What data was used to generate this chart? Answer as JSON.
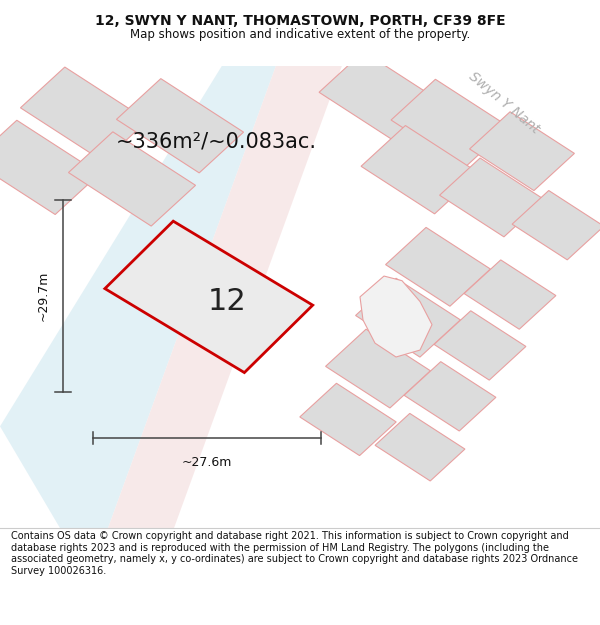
{
  "title": "12, SWYN Y NANT, THOMASTOWN, PORTH, CF39 8FE",
  "subtitle": "Map shows position and indicative extent of the property.",
  "title_fontsize": 10,
  "subtitle_fontsize": 8.5,
  "bg_color": "#ffffff",
  "footer_text": "Contains OS data © Crown copyright and database right 2021. This information is subject to Crown copyright and database rights 2023 and is reproduced with the permission of HM Land Registry. The polygons (including the associated geometry, namely x, y co-ordinates) are subject to Crown copyright and database rights 2023 Ordnance Survey 100026316.",
  "footer_fontsize": 7.0,
  "area_text": "~336m²/~0.083ac.",
  "area_fontsize": 15,
  "label_12": "12",
  "label_12_fontsize": 22,
  "width_label": "~27.6m",
  "height_label": "~29.7m",
  "dim_fontsize": 9,
  "road_label": "Swyn Y Nant",
  "road_label_fontsize": 10,
  "main_plot_color": "#cc0000",
  "neighbor_fill": "#dcdcdc",
  "neighbor_stroke": "#e8a0a0",
  "road_pink_fill": "#f5e0e0",
  "road_blue_fill": "#d0e8f0",
  "dim_line_color": "#444444",
  "map_bg": "#f2f2f2"
}
